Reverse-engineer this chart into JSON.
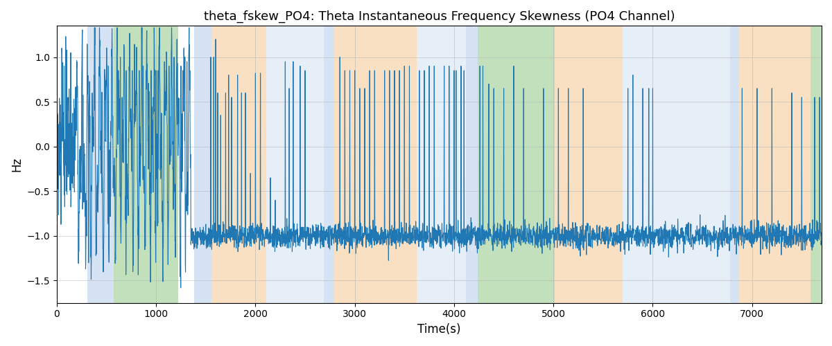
{
  "title": "theta_fskew_PO4: Theta Instantaneous Frequency Skewness (PO4 Channel)",
  "xlabel": "Time(s)",
  "ylabel": "Hz",
  "xlim": [
    0,
    7700
  ],
  "ylim": [
    -1.75,
    1.35
  ],
  "line_color": "#1f77b4",
  "line_width": 0.8,
  "bg_bands": [
    {
      "xmin": 310,
      "xmax": 570,
      "color": "#c5d8f0",
      "alpha": 0.7
    },
    {
      "xmin": 570,
      "xmax": 1220,
      "color": "#aad4a0",
      "alpha": 0.7
    },
    {
      "xmin": 1380,
      "xmax": 1560,
      "color": "#c5d8f0",
      "alpha": 0.7
    },
    {
      "xmin": 1560,
      "xmax": 2110,
      "color": "#f7d4a8",
      "alpha": 0.7
    },
    {
      "xmin": 2110,
      "xmax": 2690,
      "color": "#dce8f5",
      "alpha": 0.7
    },
    {
      "xmin": 2690,
      "xmax": 2790,
      "color": "#c5d8f0",
      "alpha": 0.7
    },
    {
      "xmin": 2790,
      "xmax": 3620,
      "color": "#f7d4a8",
      "alpha": 0.7
    },
    {
      "xmin": 3620,
      "xmax": 4120,
      "color": "#dce8f5",
      "alpha": 0.7
    },
    {
      "xmin": 4120,
      "xmax": 4240,
      "color": "#c5d8f0",
      "alpha": 0.7
    },
    {
      "xmin": 4240,
      "xmax": 5010,
      "color": "#aad4a0",
      "alpha": 0.7
    },
    {
      "xmin": 5010,
      "xmax": 5700,
      "color": "#f7d4a8",
      "alpha": 0.7
    },
    {
      "xmin": 5700,
      "xmax": 6780,
      "color": "#dce8f5",
      "alpha": 0.7
    },
    {
      "xmin": 6780,
      "xmax": 6870,
      "color": "#c5d8f0",
      "alpha": 0.7
    },
    {
      "xmin": 6870,
      "xmax": 7590,
      "color": "#f7d4a8",
      "alpha": 0.7
    },
    {
      "xmin": 7590,
      "xmax": 7700,
      "color": "#aad4a0",
      "alpha": 0.7
    }
  ],
  "seed": 42,
  "grid_color": "#b0b0b0",
  "grid_alpha": 0.7,
  "grid_linewidth": 0.5,
  "yticks": [
    -1.5,
    -1.0,
    -0.5,
    0.0,
    0.5,
    1.0
  ],
  "xticks": [
    0,
    1000,
    2000,
    3000,
    4000,
    5000,
    6000,
    7000
  ]
}
